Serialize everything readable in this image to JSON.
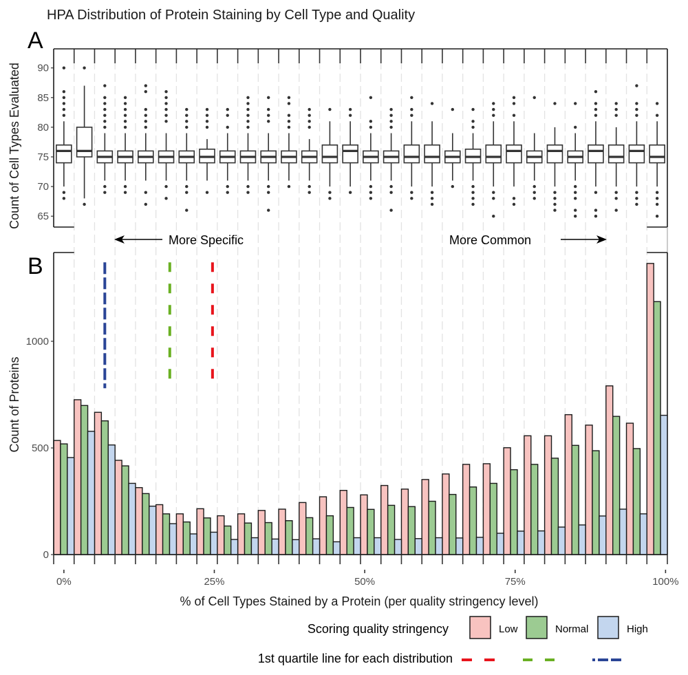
{
  "chart_data": {
    "title": "HPA Distribution of Protein Staining by Cell Type and Quality",
    "panels": [
      {
        "label": "A",
        "type": "boxplot",
        "ylabel": "Count of Cell Types Evaluated",
        "ylim": [
          63,
          92.5
        ],
        "yticks": [
          65,
          70,
          75,
          80,
          85,
          90
        ],
        "grid": "vertical dashed",
        "annotations": [
          {
            "text": "More Specific",
            "arrow": "left"
          },
          {
            "text": "More Common",
            "arrow": "right"
          }
        ],
        "boxes": [
          {
            "q1": 74,
            "median": 76,
            "q3": 77,
            "lo": 70,
            "hi": 81,
            "outliers": [
              90,
              86,
              85,
              84,
              83,
              82,
              69,
              68
            ]
          },
          {
            "q1": 75,
            "median": 76,
            "q3": 80,
            "lo": 68,
            "hi": 87,
            "outliers": [
              90,
              67
            ]
          },
          {
            "q1": 74,
            "median": 75,
            "q3": 76,
            "lo": 71,
            "hi": 79,
            "outliers": [
              87,
              85,
              84,
              83,
              82,
              81,
              80,
              70,
              69
            ]
          },
          {
            "q1": 74,
            "median": 75,
            "q3": 76,
            "lo": 71,
            "hi": 79,
            "outliers": [
              85,
              84,
              83,
              82,
              81,
              80,
              70,
              69
            ]
          },
          {
            "q1": 74,
            "median": 75,
            "q3": 76,
            "lo": 71,
            "hi": 79,
            "outliers": [
              87,
              86,
              83,
              82,
              81,
              80,
              69,
              67
            ]
          },
          {
            "q1": 74,
            "median": 75,
            "q3": 76,
            "lo": 71,
            "hi": 79,
            "outliers": [
              86,
              85,
              84,
              83,
              82,
              81,
              70,
              68
            ]
          },
          {
            "q1": 74,
            "median": 75,
            "q3": 76,
            "lo": 71,
            "hi": 79,
            "outliers": [
              83,
              82,
              81,
              80,
              70,
              69,
              66
            ]
          },
          {
            "q1": 74,
            "median": 75,
            "q3": 76.3,
            "lo": 71,
            "hi": 78,
            "outliers": [
              83,
              82,
              81,
              80,
              69
            ]
          },
          {
            "q1": 74,
            "median": 75,
            "q3": 76,
            "lo": 71,
            "hi": 79,
            "outliers": [
              83,
              82,
              80,
              70,
              69
            ]
          },
          {
            "q1": 74,
            "median": 75,
            "q3": 76,
            "lo": 71,
            "hi": 79,
            "outliers": [
              85,
              84,
              83,
              82,
              81,
              80,
              70,
              69
            ]
          },
          {
            "q1": 74,
            "median": 75,
            "q3": 76,
            "lo": 71,
            "hi": 79,
            "outliers": [
              85,
              83,
              82,
              81,
              70,
              69,
              66
            ]
          },
          {
            "q1": 74,
            "median": 75,
            "q3": 76,
            "lo": 71,
            "hi": 79,
            "outliers": [
              85,
              84,
              82,
              81,
              80,
              70
            ]
          },
          {
            "q1": 74,
            "median": 75,
            "q3": 76,
            "lo": 71,
            "hi": 78,
            "outliers": [
              83,
              82,
              81,
              80,
              70,
              69
            ]
          },
          {
            "q1": 74,
            "median": 75,
            "q3": 77,
            "lo": 70,
            "hi": 81,
            "outliers": [
              83,
              69,
              68
            ]
          },
          {
            "q1": 74,
            "median": 76,
            "q3": 77,
            "lo": 70,
            "hi": 81,
            "outliers": [
              83,
              82,
              69
            ]
          },
          {
            "q1": 74,
            "median": 75,
            "q3": 76,
            "lo": 71,
            "hi": 79,
            "outliers": [
              85,
              81,
              80,
              70,
              69,
              68
            ]
          },
          {
            "q1": 74,
            "median": 75,
            "q3": 76,
            "lo": 71,
            "hi": 79,
            "outliers": [
              83,
              82,
              81,
              80,
              70,
              69,
              66
            ]
          },
          {
            "q1": 74,
            "median": 75,
            "q3": 77,
            "lo": 70,
            "hi": 81,
            "outliers": [
              85,
              83,
              82,
              69,
              68
            ]
          },
          {
            "q1": 74,
            "median": 75,
            "q3": 77,
            "lo": 70,
            "hi": 81,
            "outliers": [
              84,
              69,
              68,
              67
            ]
          },
          {
            "q1": 74,
            "median": 75,
            "q3": 76,
            "lo": 71,
            "hi": 79,
            "outliers": [
              83,
              70
            ]
          },
          {
            "q1": 74,
            "median": 75,
            "q3": 76.3,
            "lo": 71,
            "hi": 79,
            "outliers": [
              83,
              81,
              80,
              70,
              69,
              68,
              67
            ]
          },
          {
            "q1": 74,
            "median": 75,
            "q3": 77,
            "lo": 70,
            "hi": 81,
            "outliers": [
              84,
              83,
              82,
              69,
              68,
              65
            ]
          },
          {
            "q1": 74,
            "median": 76,
            "q3": 77,
            "lo": 70,
            "hi": 81,
            "outliers": [
              85,
              84,
              82,
              68,
              67
            ]
          },
          {
            "q1": 74,
            "median": 75,
            "q3": 76,
            "lo": 71,
            "hi": 79,
            "outliers": [
              85,
              70,
              69,
              68
            ]
          },
          {
            "q1": 74,
            "median": 76,
            "q3": 77,
            "lo": 70,
            "hi": 80,
            "outliers": [
              84,
              69,
              68,
              67,
              66
            ]
          },
          {
            "q1": 74,
            "median": 75,
            "q3": 76,
            "lo": 71,
            "hi": 79,
            "outliers": [
              84,
              80,
              70,
              69,
              68,
              66,
              65
            ]
          },
          {
            "q1": 74,
            "median": 76,
            "q3": 77,
            "lo": 70,
            "hi": 81,
            "outliers": [
              86,
              84,
              83,
              82,
              69,
              66,
              65
            ]
          },
          {
            "q1": 74,
            "median": 75,
            "q3": 77,
            "lo": 70,
            "hi": 80,
            "outliers": [
              84,
              83,
              82,
              69,
              68,
              66
            ]
          },
          {
            "q1": 74,
            "median": 76,
            "q3": 77,
            "lo": 70,
            "hi": 81,
            "outliers": [
              87,
              84,
              83,
              82,
              69,
              68,
              67
            ]
          },
          {
            "q1": 74,
            "median": 75,
            "q3": 77,
            "lo": 70,
            "hi": 81,
            "outliers": [
              84,
              82,
              69,
              68,
              67,
              65
            ]
          }
        ]
      },
      {
        "label": "B",
        "type": "bar",
        "ylabel": "Count of Proteins",
        "xlabel": "% of Cell Types Stained by a Protein (per quality stringency level)",
        "ylim": [
          0,
          1400
        ],
        "yticks": [
          0,
          500,
          1000
        ],
        "xlim": [
          -1.7,
          100.3
        ],
        "xticks": [
          0,
          25,
          50,
          75,
          100
        ],
        "xtick_labels": [
          "0%",
          "25%",
          "50%",
          "75%",
          "100%"
        ],
        "bin_width_pct": 3.4,
        "bin_start_pct": -1.7,
        "series": [
          {
            "name": "Low",
            "color": "#f8c3c0",
            "values": [
              535,
              726,
              667,
              442,
              314,
              234,
              191,
              215,
              182,
              191,
              207,
              213,
              244,
              271,
              301,
              280,
              324,
              307,
              352,
              378,
              423,
              426,
              501,
              557,
              557,
              656,
              607,
              791,
              616,
              1365
            ]
          },
          {
            "name": "Normal",
            "color": "#9ccb92",
            "values": [
              519,
              699,
              627,
              416,
              286,
              191,
              153,
              172,
              134,
              148,
              150,
              159,
              173,
              182,
              221,
              212,
              231,
              225,
              250,
              282,
              317,
              334,
              398,
              423,
              452,
              512,
              487,
              648,
              497,
              1186
            ]
          },
          {
            "name": "High",
            "color": "#c3d6ee",
            "values": [
              455,
              578,
              514,
              334,
              227,
              145,
              97,
              105,
              71,
              79,
              73,
              70,
              74,
              60,
              79,
              79,
              71,
              75,
              79,
              78,
              81,
              100,
              110,
              111,
              129,
              139,
              181,
              213,
              191,
              653
            ]
          }
        ],
        "quartile_lines": [
          {
            "name": "High",
            "color": "#2a4596",
            "x_pct": 6.8
          },
          {
            "name": "Normal",
            "color": "#6ab023",
            "x_pct": 17.6
          },
          {
            "name": "Low",
            "color": "#e8141c",
            "x_pct": 24.7
          }
        ],
        "quartile_line_range": [
          780,
          1370
        ]
      }
    ],
    "legend": {
      "title": "Scoring quality stringency",
      "items": [
        "Low",
        "Normal",
        "High"
      ],
      "quartile_title": "1st quartile line for each distribution",
      "placement": "bottom-right"
    }
  }
}
